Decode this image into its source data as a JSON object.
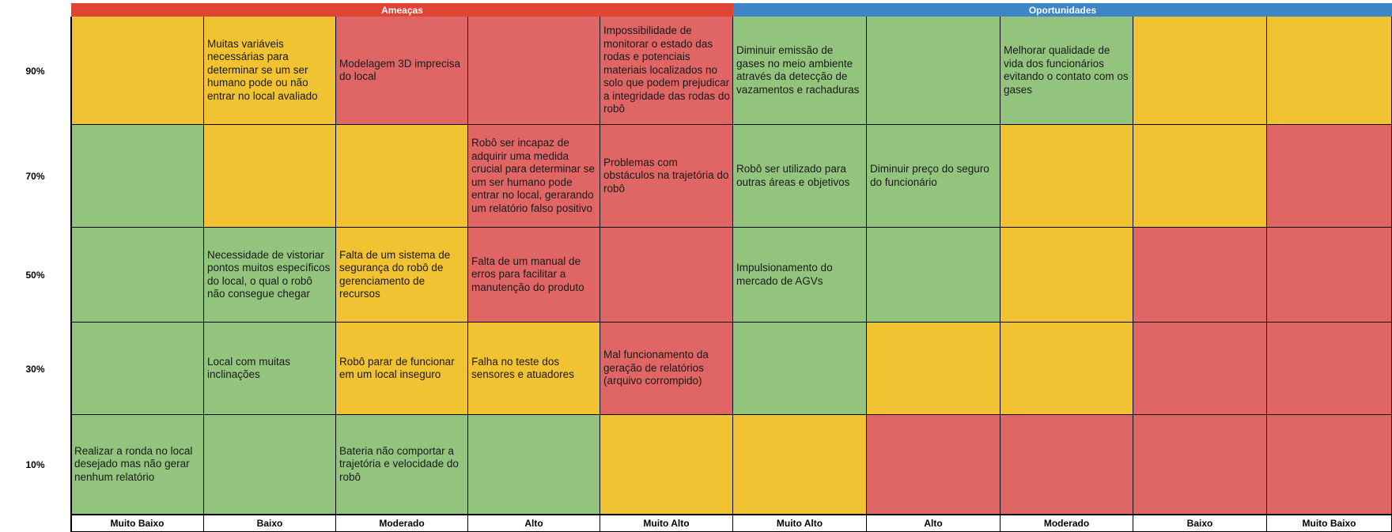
{
  "headers": {
    "threats": "Ameaças",
    "opportunities": "Oportunidades"
  },
  "probabilities": [
    "90%",
    "70%",
    "50%",
    "30%",
    "10%"
  ],
  "impact_labels": [
    "Muito Baixo",
    "Baixo",
    "Moderado",
    "Alto",
    "Muito Alto",
    "Muito Alto",
    "Alto",
    "Moderado",
    "Baixo",
    "Muito Baixo"
  ],
  "colors": {
    "green": "#93c47d",
    "yellow": "#f1c232",
    "red": "#e06666",
    "threat_header": "#e04437",
    "opportunity_header": "#3d85c6"
  },
  "rows": [
    {
      "probability": "90%",
      "cells": [
        {
          "color": "yellow",
          "text": ""
        },
        {
          "color": "yellow",
          "text": "Muitas variáveis necessárias para determinar se um ser humano pode ou não entrar no local avaliado"
        },
        {
          "color": "red",
          "text": "Modelagem 3D imprecisa do local"
        },
        {
          "color": "red",
          "text": ""
        },
        {
          "color": "red",
          "text": "Impossibilidade de monitorar o estado das rodas e potenciais materiais localizados no solo que podem prejudicar a integridade das rodas do robô"
        },
        {
          "color": "green",
          "text": "Diminuir emissão de gases no meio ambiente através da detecção de vazamentos e rachaduras"
        },
        {
          "color": "green",
          "text": ""
        },
        {
          "color": "green",
          "text": "Melhorar qualidade de vida dos funcionários evitando o contato com os gases"
        },
        {
          "color": "yellow",
          "text": ""
        },
        {
          "color": "yellow",
          "text": ""
        }
      ]
    },
    {
      "probability": "70%",
      "cells": [
        {
          "color": "green",
          "text": ""
        },
        {
          "color": "yellow",
          "text": ""
        },
        {
          "color": "yellow",
          "text": ""
        },
        {
          "color": "red",
          "text": "Robô ser incapaz de adquirir uma medida crucial para determinar se um ser humano pode entrar no local, gerarando um relatório falso positivo"
        },
        {
          "color": "red",
          "text": "Problemas com obstáculos na trajetória do robô"
        },
        {
          "color": "green",
          "text": "Robô ser utilizado para outras áreas e objetivos"
        },
        {
          "color": "green",
          "text": "Diminuir preço do seguro do funcionário"
        },
        {
          "color": "yellow",
          "text": ""
        },
        {
          "color": "yellow",
          "text": ""
        },
        {
          "color": "red",
          "text": ""
        }
      ]
    },
    {
      "probability": "50%",
      "cells": [
        {
          "color": "green",
          "text": ""
        },
        {
          "color": "green",
          "text": "Necessidade de vistoriar pontos muitos específicos do local, o qual o robô não consegue chegar"
        },
        {
          "color": "yellow",
          "text": "Falta de um sistema de segurança do robô de gerenciamento de recursos"
        },
        {
          "color": "red",
          "text": "Falta de um manual de erros para facilitar a manutenção do produto"
        },
        {
          "color": "red",
          "text": ""
        },
        {
          "color": "green",
          "text": "Impulsionamento do mercado de AGVs"
        },
        {
          "color": "green",
          "text": ""
        },
        {
          "color": "yellow",
          "text": ""
        },
        {
          "color": "red",
          "text": ""
        },
        {
          "color": "red",
          "text": ""
        }
      ]
    },
    {
      "probability": "30%",
      "cells": [
        {
          "color": "green",
          "text": ""
        },
        {
          "color": "green",
          "text": "Local com muitas inclinações"
        },
        {
          "color": "yellow",
          "text": "Robô parar de funcionar em um local inseguro"
        },
        {
          "color": "yellow",
          "text": "Falha no teste dos sensores e atuadores"
        },
        {
          "color": "red",
          "text": "Mal funcionamento da geração de relatórios (arquivo corrompido)"
        },
        {
          "color": "green",
          "text": ""
        },
        {
          "color": "yellow",
          "text": ""
        },
        {
          "color": "yellow",
          "text": ""
        },
        {
          "color": "red",
          "text": ""
        },
        {
          "color": "red",
          "text": ""
        }
      ]
    },
    {
      "probability": "10%",
      "cells": [
        {
          "color": "green",
          "text": "Realizar a ronda no local desejado mas não gerar nenhum relatório"
        },
        {
          "color": "green",
          "text": ""
        },
        {
          "color": "green",
          "text": "Bateria não comportar a trajetória e velocidade do robô"
        },
        {
          "color": "green",
          "text": ""
        },
        {
          "color": "yellow",
          "text": ""
        },
        {
          "color": "yellow",
          "text": ""
        },
        {
          "color": "red",
          "text": ""
        },
        {
          "color": "red",
          "text": ""
        },
        {
          "color": "red",
          "text": ""
        },
        {
          "color": "red",
          "text": ""
        }
      ]
    }
  ]
}
